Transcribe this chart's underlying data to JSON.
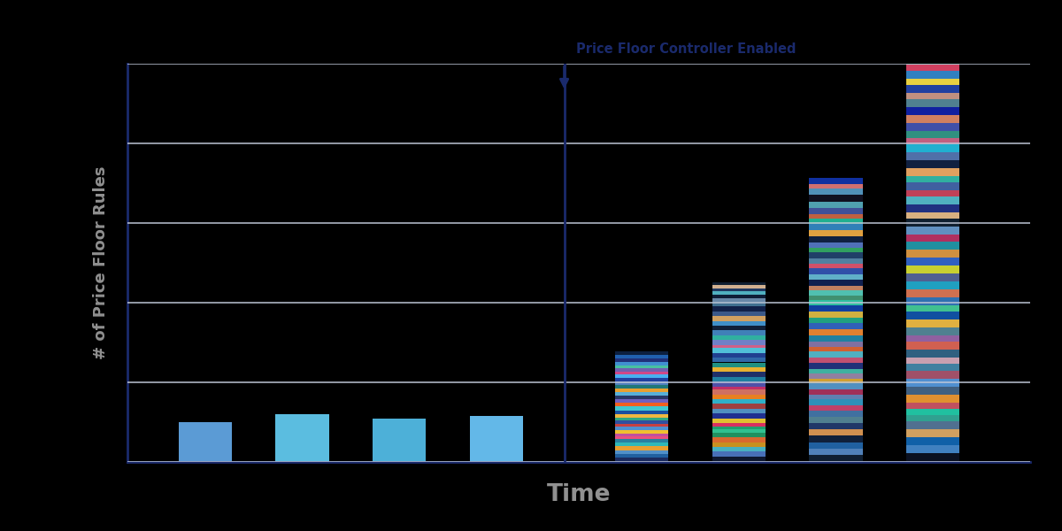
{
  "title": "Price Floor Controller Enabled",
  "xlabel": "Time",
  "ylabel": "# of Price Floor Rules",
  "background": "#000000",
  "plot_bg": "#000000",
  "axis_color": "#1a2a6c",
  "grid_color": "#c0c8d8",
  "label_color": "#909090",
  "annotation_color": "#1a2a6c",
  "vline_x": 4.7,
  "bar_width": 0.55,
  "ylim": [
    0,
    10
  ],
  "xlim": [
    0.2,
    9.5
  ],
  "bars": [
    {
      "x": 1.0,
      "segments": [
        {
          "color": "#5b9bd5",
          "value": 1.0
        }
      ]
    },
    {
      "x": 2.0,
      "segments": [
        {
          "color": "#5bbde0",
          "value": 1.2
        }
      ]
    },
    {
      "x": 3.0,
      "segments": [
        {
          "color": "#4db0d8",
          "value": 1.1
        }
      ]
    },
    {
      "x": 4.0,
      "segments": [
        {
          "color": "#63b8e8",
          "value": 1.15
        }
      ]
    },
    {
      "x": 5.5,
      "segments": [
        {
          "color": "#1a2a5e",
          "value": 0.12
        },
        {
          "color": "#2060a0",
          "value": 0.09
        },
        {
          "color": "#5090c8",
          "value": 0.09
        },
        {
          "color": "#e8a030",
          "value": 0.09
        },
        {
          "color": "#30b8b8",
          "value": 0.09
        },
        {
          "color": "#2880a0",
          "value": 0.09
        },
        {
          "color": "#e85080",
          "value": 0.07
        },
        {
          "color": "#c050a0",
          "value": 0.07
        },
        {
          "color": "#f0c030",
          "value": 0.09
        },
        {
          "color": "#5090d0",
          "value": 0.09
        },
        {
          "color": "#c84040",
          "value": 0.07
        },
        {
          "color": "#3050a0",
          "value": 0.09
        },
        {
          "color": "#30a880",
          "value": 0.07
        },
        {
          "color": "#f0b840",
          "value": 0.09
        },
        {
          "color": "#1a50a0",
          "value": 0.09
        },
        {
          "color": "#40c8d0",
          "value": 0.09
        },
        {
          "color": "#f06020",
          "value": 0.09
        },
        {
          "color": "#7060c0",
          "value": 0.09
        },
        {
          "color": "#283868",
          "value": 0.09
        },
        {
          "color": "#58b0d8",
          "value": 0.09
        },
        {
          "color": "#e8a030",
          "value": 0.09
        },
        {
          "color": "#207878",
          "value": 0.09
        },
        {
          "color": "#5080c0",
          "value": 0.09
        },
        {
          "color": "#2040a0",
          "value": 0.09
        },
        {
          "color": "#48b0f0",
          "value": 0.09
        },
        {
          "color": "#d04888",
          "value": 0.07
        },
        {
          "color": "#7060b0",
          "value": 0.09
        },
        {
          "color": "#48c0a0",
          "value": 0.07
        },
        {
          "color": "#4090d0",
          "value": 0.09
        },
        {
          "color": "#203078",
          "value": 0.09
        },
        {
          "color": "#2060b0",
          "value": 0.09
        },
        {
          "color": "#0c2040",
          "value": 0.07
        }
      ]
    },
    {
      "x": 6.5,
      "segments": [
        {
          "color": "#0e1830",
          "value": 0.14
        },
        {
          "color": "#4870b8",
          "value": 0.12
        },
        {
          "color": "#48b0c0",
          "value": 0.12
        },
        {
          "color": "#c89020",
          "value": 0.12
        },
        {
          "color": "#d86830",
          "value": 0.12
        },
        {
          "color": "#209060",
          "value": 0.12
        },
        {
          "color": "#30c090",
          "value": 0.08
        },
        {
          "color": "#20a070",
          "value": 0.08
        },
        {
          "color": "#d83060",
          "value": 0.08
        },
        {
          "color": "#e0c030",
          "value": 0.12
        },
        {
          "color": "#203090",
          "value": 0.12
        },
        {
          "color": "#5090c0",
          "value": 0.12
        },
        {
          "color": "#a04040",
          "value": 0.12
        },
        {
          "color": "#30b0c8",
          "value": 0.12
        },
        {
          "color": "#e88020",
          "value": 0.12
        },
        {
          "color": "#d07060",
          "value": 0.12
        },
        {
          "color": "#c03068",
          "value": 0.08
        },
        {
          "color": "#5050a8",
          "value": 0.12
        },
        {
          "color": "#2080a0",
          "value": 0.12
        },
        {
          "color": "#203068",
          "value": 0.12
        },
        {
          "color": "#e8b030",
          "value": 0.12
        },
        {
          "color": "#209080",
          "value": 0.12
        },
        {
          "color": "#3068a8",
          "value": 0.12
        },
        {
          "color": "#204090",
          "value": 0.12
        },
        {
          "color": "#50c0d8",
          "value": 0.12
        },
        {
          "color": "#d06088",
          "value": 0.08
        },
        {
          "color": "#7080c8",
          "value": 0.12
        },
        {
          "color": "#30b0a0",
          "value": 0.12
        },
        {
          "color": "#4080b8",
          "value": 0.12
        },
        {
          "color": "#102038",
          "value": 0.12
        },
        {
          "color": "#4090c8",
          "value": 0.12
        },
        {
          "color": "#d0a060",
          "value": 0.12
        },
        {
          "color": "#3a5888",
          "value": 0.12
        },
        {
          "color": "#102048",
          "value": 0.12
        },
        {
          "color": "#407090",
          "value": 0.12
        },
        {
          "color": "#6888a8",
          "value": 0.08
        },
        {
          "color": "#0f1e38",
          "value": 0.1
        },
        {
          "color": "#50b0c0",
          "value": 0.08
        },
        {
          "color": "#203860",
          "value": 0.08
        },
        {
          "color": "#d0b090",
          "value": 0.08
        },
        {
          "color": "#0f1e30",
          "value": 0.07
        }
      ]
    },
    {
      "x": 7.5,
      "segments": [
        {
          "color": "#0f1e30",
          "value": 0.18
        },
        {
          "color": "#5080b8",
          "value": 0.16
        },
        {
          "color": "#2060a0",
          "value": 0.16
        },
        {
          "color": "#10203a",
          "value": 0.16
        },
        {
          "color": "#d09050",
          "value": 0.16
        },
        {
          "color": "#203868",
          "value": 0.16
        },
        {
          "color": "#508090",
          "value": 0.16
        },
        {
          "color": "#4070a0",
          "value": 0.16
        },
        {
          "color": "#c04068",
          "value": 0.12
        },
        {
          "color": "#3090b8",
          "value": 0.16
        },
        {
          "color": "#6080b0",
          "value": 0.12
        },
        {
          "color": "#a03058",
          "value": 0.12
        },
        {
          "color": "#5090c0",
          "value": 0.16
        },
        {
          "color": "#d0a030",
          "value": 0.12
        },
        {
          "color": "#9080a0",
          "value": 0.12
        },
        {
          "color": "#40b0a0",
          "value": 0.12
        },
        {
          "color": "#203078",
          "value": 0.16
        },
        {
          "color": "#c05070",
          "value": 0.12
        },
        {
          "color": "#50b0c0",
          "value": 0.16
        },
        {
          "color": "#d06030",
          "value": 0.12
        },
        {
          "color": "#8070a0",
          "value": 0.12
        },
        {
          "color": "#2080a0",
          "value": 0.16
        },
        {
          "color": "#e08030",
          "value": 0.16
        },
        {
          "color": "#3060b8",
          "value": 0.16
        },
        {
          "color": "#20a080",
          "value": 0.12
        },
        {
          "color": "#d0b040",
          "value": 0.16
        },
        {
          "color": "#1040a0",
          "value": 0.16
        },
        {
          "color": "#30c0a0",
          "value": 0.12
        },
        {
          "color": "#409070",
          "value": 0.12
        },
        {
          "color": "#50c0b0",
          "value": 0.12
        },
        {
          "color": "#c08060",
          "value": 0.12
        },
        {
          "color": "#102050",
          "value": 0.16
        },
        {
          "color": "#60b0c8",
          "value": 0.12
        },
        {
          "color": "#3050a8",
          "value": 0.16
        },
        {
          "color": "#d05068",
          "value": 0.12
        },
        {
          "color": "#5080a0",
          "value": 0.12
        },
        {
          "color": "#204068",
          "value": 0.16
        },
        {
          "color": "#30a060",
          "value": 0.12
        },
        {
          "color": "#5070b8",
          "value": 0.12
        },
        {
          "color": "#102040",
          "value": 0.16
        },
        {
          "color": "#e0a040",
          "value": 0.16
        },
        {
          "color": "#3080b8",
          "value": 0.16
        },
        {
          "color": "#20b090",
          "value": 0.12
        },
        {
          "color": "#c06040",
          "value": 0.12
        },
        {
          "color": "#405098",
          "value": 0.16
        },
        {
          "color": "#50a0b0",
          "value": 0.16
        },
        {
          "color": "#101020",
          "value": 0.16
        },
        {
          "color": "#5090b8",
          "value": 0.16
        },
        {
          "color": "#d07070",
          "value": 0.12
        },
        {
          "color": "#1030a0",
          "value": 0.16
        }
      ]
    },
    {
      "x": 8.5,
      "segments": [
        {
          "color": "#0a1020",
          "value": 0.22
        },
        {
          "color": "#4080c0",
          "value": 0.2
        },
        {
          "color": "#1060a8",
          "value": 0.2
        },
        {
          "color": "#d0a060",
          "value": 0.2
        },
        {
          "color": "#507090",
          "value": 0.2
        },
        {
          "color": "#30a090",
          "value": 0.16
        },
        {
          "color": "#20c0a0",
          "value": 0.16
        },
        {
          "color": "#c05060",
          "value": 0.16
        },
        {
          "color": "#e09030",
          "value": 0.2
        },
        {
          "color": "#406080",
          "value": 0.2
        },
        {
          "color": "#5090d0",
          "value": 0.2
        },
        {
          "color": "#a05068",
          "value": 0.2
        },
        {
          "color": "#4080a0",
          "value": 0.16
        },
        {
          "color": "#c8a0b0",
          "value": 0.16
        },
        {
          "color": "#306080",
          "value": 0.2
        },
        {
          "color": "#d06050",
          "value": 0.2
        },
        {
          "color": "#9060a0",
          "value": 0.16
        },
        {
          "color": "#508090",
          "value": 0.2
        },
        {
          "color": "#e0b040",
          "value": 0.2
        },
        {
          "color": "#1050a0",
          "value": 0.2
        },
        {
          "color": "#40c090",
          "value": 0.16
        },
        {
          "color": "#3070b0",
          "value": 0.2
        },
        {
          "color": "#d07050",
          "value": 0.2
        },
        {
          "color": "#20a0c0",
          "value": 0.2
        },
        {
          "color": "#506090",
          "value": 0.2
        },
        {
          "color": "#c8d030",
          "value": 0.2
        },
        {
          "color": "#3060c0",
          "value": 0.2
        },
        {
          "color": "#d09040",
          "value": 0.2
        },
        {
          "color": "#2090a0",
          "value": 0.2
        },
        {
          "color": "#b03060",
          "value": 0.16
        },
        {
          "color": "#6090c0",
          "value": 0.2
        },
        {
          "color": "#102030",
          "value": 0.2
        },
        {
          "color": "#d8b080",
          "value": 0.16
        },
        {
          "color": "#203080",
          "value": 0.2
        },
        {
          "color": "#50b0c0",
          "value": 0.2
        },
        {
          "color": "#c04058",
          "value": 0.16
        },
        {
          "color": "#4060a0",
          "value": 0.2
        },
        {
          "color": "#30b0a0",
          "value": 0.16
        },
        {
          "color": "#e0a060",
          "value": 0.2
        },
        {
          "color": "#102040",
          "value": 0.2
        },
        {
          "color": "#5070a8",
          "value": 0.2
        },
        {
          "color": "#20b0d0",
          "value": 0.2
        },
        {
          "color": "#c06080",
          "value": 0.16
        },
        {
          "color": "#309080",
          "value": 0.16
        },
        {
          "color": "#4050a8",
          "value": 0.2
        },
        {
          "color": "#d08060",
          "value": 0.2
        },
        {
          "color": "#1020a0",
          "value": 0.2
        },
        {
          "color": "#508090",
          "value": 0.2
        },
        {
          "color": "#c09080",
          "value": 0.16
        },
        {
          "color": "#2040a0",
          "value": 0.2
        },
        {
          "color": "#e8d040",
          "value": 0.16
        },
        {
          "color": "#3080c0",
          "value": 0.2
        },
        {
          "color": "#d04060",
          "value": 0.16
        },
        {
          "color": "#40a090",
          "value": 0.16
        },
        {
          "color": "#1030c0",
          "value": 0.2
        },
        {
          "color": "#060c18",
          "value": 0.2
        }
      ]
    }
  ]
}
